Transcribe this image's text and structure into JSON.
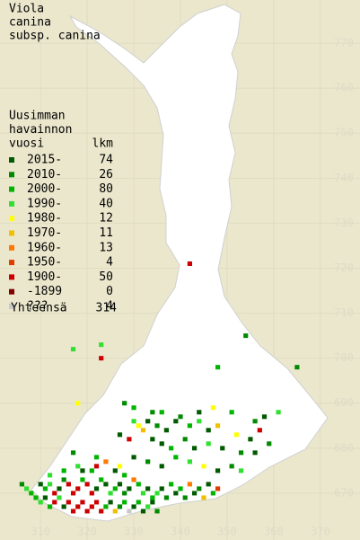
{
  "map": {
    "title_lines": [
      "Viola",
      "canina",
      "subsp. canina"
    ],
    "legend_header": [
      "Uusimman",
      "havainnon",
      "vuosi"
    ],
    "count_header": "lkm",
    "rows": [
      {
        "label": "2015-",
        "count": 74,
        "color": "#005a00"
      },
      {
        "label": "2010-",
        "count": 26,
        "color": "#008a00"
      },
      {
        "label": "2000-",
        "count": 80,
        "color": "#00b400"
      },
      {
        "label": "1990-",
        "count": 40,
        "color": "#30e030"
      },
      {
        "label": "1980-",
        "count": 12,
        "color": "#ffff00"
      },
      {
        "label": "1970-",
        "count": 11,
        "color": "#f0c000"
      },
      {
        "label": "1960-",
        "count": 13,
        "color": "#ff7800"
      },
      {
        "label": "1950-",
        "count": 4,
        "color": "#e03c00"
      },
      {
        "label": "1900-",
        "count": 50,
        "color": "#cc0000"
      },
      {
        "label": "-1899",
        "count": 0,
        "color": "#800000"
      },
      {
        "label": "???",
        "count": 4,
        "color": "#c8c8c8"
      }
    ],
    "total_label": "Yhteensä",
    "total": 314,
    "xlim": [
      301.3,
      378.5
    ],
    "ylim": [
      659.6,
      779.6
    ],
    "xticks": [
      310,
      320,
      330,
      340,
      350,
      360,
      370
    ],
    "yticks": [
      670,
      680,
      690,
      700,
      710,
      720,
      730,
      740,
      750,
      760,
      770
    ],
    "points": [
      [
        342,
        721,
        8
      ],
      [
        323,
        703,
        3
      ],
      [
        323,
        700,
        8
      ],
      [
        317,
        702,
        3
      ],
      [
        354,
        705,
        1
      ],
      [
        348,
        698,
        2
      ],
      [
        365,
        698,
        1
      ],
      [
        318,
        690,
        4
      ],
      [
        328,
        690,
        1
      ],
      [
        330,
        689,
        2
      ],
      [
        334,
        688,
        1
      ],
      [
        336,
        688,
        2
      ],
      [
        344,
        688,
        0
      ],
      [
        347,
        689,
        4
      ],
      [
        351,
        688,
        2
      ],
      [
        356,
        686,
        1
      ],
      [
        358,
        687,
        0
      ],
      [
        361,
        688,
        3
      ],
      [
        330,
        686,
        3
      ],
      [
        331,
        685,
        4
      ],
      [
        332,
        684,
        5
      ],
      [
        333,
        686,
        0
      ],
      [
        335,
        685,
        1
      ],
      [
        337,
        684,
        0
      ],
      [
        339,
        686,
        0
      ],
      [
        340,
        687,
        1
      ],
      [
        342,
        685,
        2
      ],
      [
        344,
        686,
        3
      ],
      [
        346,
        684,
        0
      ],
      [
        348,
        685,
        5
      ],
      [
        352,
        683,
        4
      ],
      [
        355,
        682,
        0
      ],
      [
        357,
        684,
        8
      ],
      [
        359,
        681,
        1
      ],
      [
        327,
        683,
        0
      ],
      [
        329,
        682,
        8
      ],
      [
        334,
        682,
        0
      ],
      [
        336,
        681,
        0
      ],
      [
        338,
        680,
        2
      ],
      [
        341,
        682,
        1
      ],
      [
        343,
        680,
        0
      ],
      [
        346,
        681,
        3
      ],
      [
        349,
        680,
        0
      ],
      [
        353,
        679,
        1
      ],
      [
        356,
        679,
        0
      ],
      [
        317,
        679,
        1
      ],
      [
        322,
        678,
        2
      ],
      [
        324,
        677,
        6
      ],
      [
        327,
        676,
        4
      ],
      [
        330,
        678,
        0
      ],
      [
        333,
        677,
        1
      ],
      [
        336,
        676,
        0
      ],
      [
        339,
        678,
        2
      ],
      [
        342,
        677,
        3
      ],
      [
        345,
        676,
        4
      ],
      [
        348,
        675,
        0
      ],
      [
        351,
        676,
        1
      ],
      [
        353,
        675,
        3
      ],
      [
        310,
        672,
        0
      ],
      [
        311,
        671,
        2
      ],
      [
        312,
        672,
        3
      ],
      [
        313,
        670,
        8
      ],
      [
        314,
        671,
        0
      ],
      [
        315,
        673,
        1
      ],
      [
        316,
        672,
        8
      ],
      [
        317,
        670,
        8
      ],
      [
        318,
        671,
        8
      ],
      [
        319,
        673,
        2
      ],
      [
        320,
        672,
        8
      ],
      [
        321,
        670,
        8
      ],
      [
        322,
        671,
        0
      ],
      [
        323,
        673,
        2
      ],
      [
        324,
        672,
        0
      ],
      [
        325,
        670,
        3
      ],
      [
        326,
        671,
        2
      ],
      [
        327,
        672,
        0
      ],
      [
        328,
        670,
        1
      ],
      [
        329,
        671,
        0
      ],
      [
        330,
        673,
        6
      ],
      [
        331,
        672,
        2
      ],
      [
        332,
        670,
        3
      ],
      [
        333,
        671,
        0
      ],
      [
        334,
        669,
        2
      ],
      [
        335,
        670,
        3
      ],
      [
        336,
        671,
        0
      ],
      [
        337,
        669,
        1
      ],
      [
        338,
        672,
        2
      ],
      [
        339,
        670,
        0
      ],
      [
        340,
        671,
        2
      ],
      [
        341,
        669,
        1
      ],
      [
        342,
        672,
        6
      ],
      [
        343,
        670,
        0
      ],
      [
        344,
        671,
        1
      ],
      [
        345,
        669,
        5
      ],
      [
        346,
        672,
        0
      ],
      [
        347,
        670,
        2
      ],
      [
        348,
        671,
        7
      ],
      [
        309,
        669,
        2
      ],
      [
        310,
        668,
        3
      ],
      [
        311,
        669,
        0
      ],
      [
        312,
        667,
        2
      ],
      [
        313,
        668,
        8
      ],
      [
        314,
        669,
        3
      ],
      [
        315,
        667,
        0
      ],
      [
        316,
        668,
        8
      ],
      [
        317,
        666,
        8
      ],
      [
        318,
        667,
        8
      ],
      [
        319,
        668,
        8
      ],
      [
        320,
        666,
        8
      ],
      [
        321,
        667,
        8
      ],
      [
        322,
        668,
        8
      ],
      [
        323,
        666,
        8
      ],
      [
        324,
        667,
        2
      ],
      [
        325,
        668,
        0
      ],
      [
        326,
        666,
        5
      ],
      [
        327,
        667,
        1
      ],
      [
        328,
        668,
        2
      ],
      [
        329,
        666,
        10
      ],
      [
        330,
        667,
        0
      ],
      [
        331,
        668,
        2
      ],
      [
        332,
        666,
        0
      ],
      [
        333,
        667,
        3
      ],
      [
        334,
        668,
        0
      ],
      [
        335,
        666,
        1
      ],
      [
        307,
        671,
        3
      ],
      [
        308,
        670,
        2
      ],
      [
        306,
        672,
        1
      ],
      [
        319,
        675,
        0
      ],
      [
        321,
        675,
        2
      ],
      [
        322,
        676,
        8
      ],
      [
        318,
        676,
        3
      ],
      [
        315,
        675,
        2
      ],
      [
        312,
        674,
        3
      ],
      [
        326,
        675,
        0
      ],
      [
        328,
        674,
        2
      ]
    ]
  }
}
